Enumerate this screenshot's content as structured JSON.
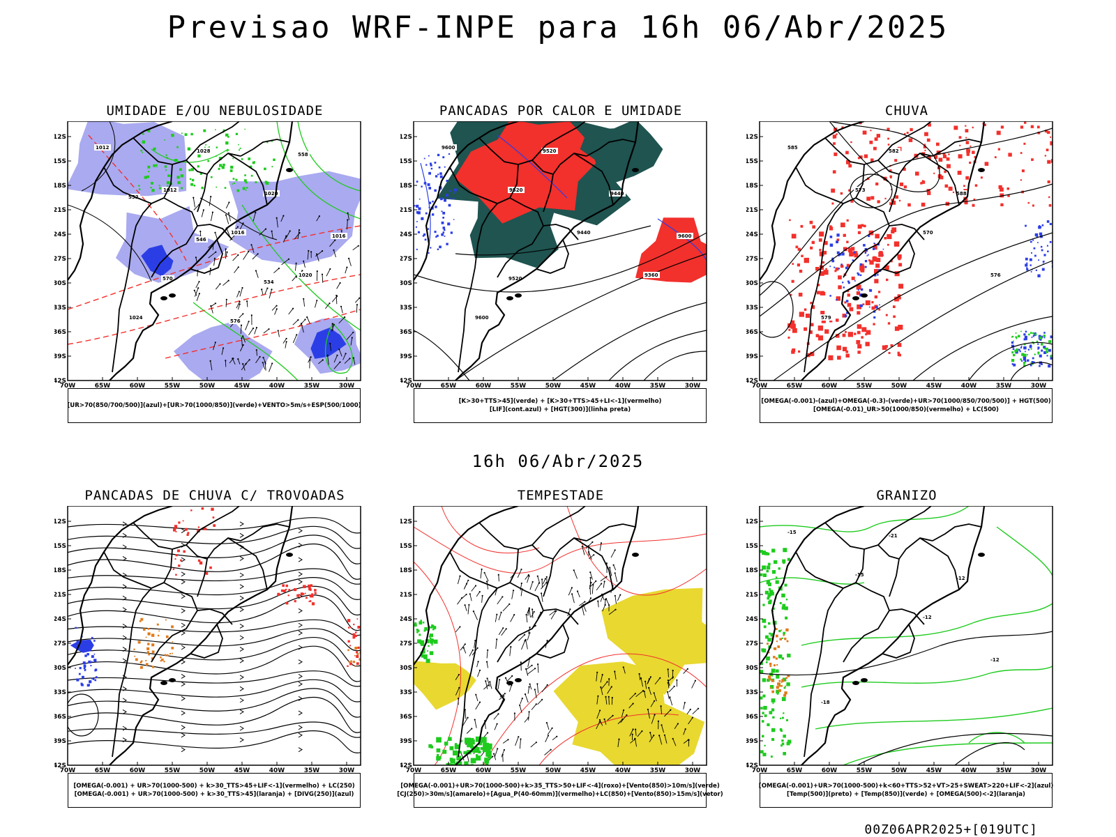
{
  "title": "Previsao WRF-INPE  para 16h 06/Abr/2025",
  "mid_label": "16h 06/Abr/2025",
  "footer": "00Z06APR2025+[019UTC]",
  "axes": {
    "lat_labels": [
      "12S",
      "15S",
      "18S",
      "21S",
      "24S",
      "27S",
      "30S",
      "33S",
      "36S",
      "39S",
      "42S"
    ],
    "lon_labels": [
      "70W",
      "65W",
      "60W",
      "55W",
      "50W",
      "45W",
      "40W",
      "35W",
      "30W"
    ]
  },
  "colors": {
    "blue": "#2b3ee6",
    "green": "#1ecb1e",
    "red": "#f2302c",
    "lavender": "#aaaaf0",
    "darkteal": "#1f5450",
    "yellow": "#e8d830",
    "orange": "#e07a1a",
    "black": "#000000"
  },
  "panels": [
    {
      "id": "umidade",
      "title": "UMIDADE E/OU NEBULOSIDADE",
      "legend": [
        "[UR>70(850/700/500)](azul)+[UR>70(1000/850)](verde)+VENTO>5m/s+ESP(500/1000)"
      ],
      "contour_labels": [
        "1012",
        "1012",
        "1016",
        "1020",
        "1024",
        "1028",
        "1020",
        "1016",
        "570",
        "576",
        "558",
        "552",
        "546",
        "534"
      ]
    },
    {
      "id": "pancadas-calor",
      "title": "PANCADAS POR CALOR E UMIDADE",
      "legend": [
        "[K>30+TTS>45](verde) + [K>30+TTS>45+LI<-1](vermelho)",
        "[LIF](cont.azul) + [HGT(300)](linha preta)"
      ],
      "contour_labels": [
        "9600",
        "9520",
        "9440",
        "9360",
        "9600",
        "9520",
        "9440",
        "9600",
        "9520"
      ]
    },
    {
      "id": "chuva",
      "title": "CHUVA",
      "legend": [
        "[OMEGA(-0.001)-(azul)+OMEGA(-0.3)-(verde)+UR>70(1000/850/700/500)] + HGT(500)",
        "[OMEGA(-0.01)_UR>50(1000/850)(vermelho) + LC(500)"
      ],
      "contour_labels": [
        "585",
        "573",
        "570",
        "576",
        "579",
        "582",
        "588"
      ]
    },
    {
      "id": "pancadas-trovoadas",
      "title": "PANCADAS DE CHUVA C/ TROVOADAS",
      "legend": [
        "[OMEGA(-0.001) + UR>70(1000-500) + k>30_TTS>45+LIF<-1](vermelho) + LC(250)",
        "[OMEGA(-0.001) + UR>70(1000-500) + k>30_TTS>45](laranja) + [DIVG(250)](azul)"
      ],
      "contour_labels": []
    },
    {
      "id": "tempestade",
      "title": "TEMPESTADE",
      "legend": [
        "[OMEGA(-0.001)+UR>70(1000-500)+k>35_TTS>50+LIF<-4](roxo)+[Vento(850)>10m/s](verde)",
        "[CJ(250)>30m/s](amarelo)+[Agua_P(40-60mm)](vermelho)+LC(850)+[Vento(850)>15m/s](vetor)"
      ],
      "contour_labels": []
    },
    {
      "id": "granizo",
      "title": "GRANIZO",
      "legend": [
        "[OMEGA(-0.001)+UR>70(1000-500)+k<60+TTS>52+VT>25+SWEAT>220+LIF<-2](azul)",
        "[Temp(500)](preto) + [Temp(850)](verde) + [OMEGA(500)<-2](laranja)"
      ],
      "contour_labels": [
        "-15",
        "-15",
        "-12",
        "-12",
        "-18",
        "-21",
        "-12"
      ]
    }
  ]
}
